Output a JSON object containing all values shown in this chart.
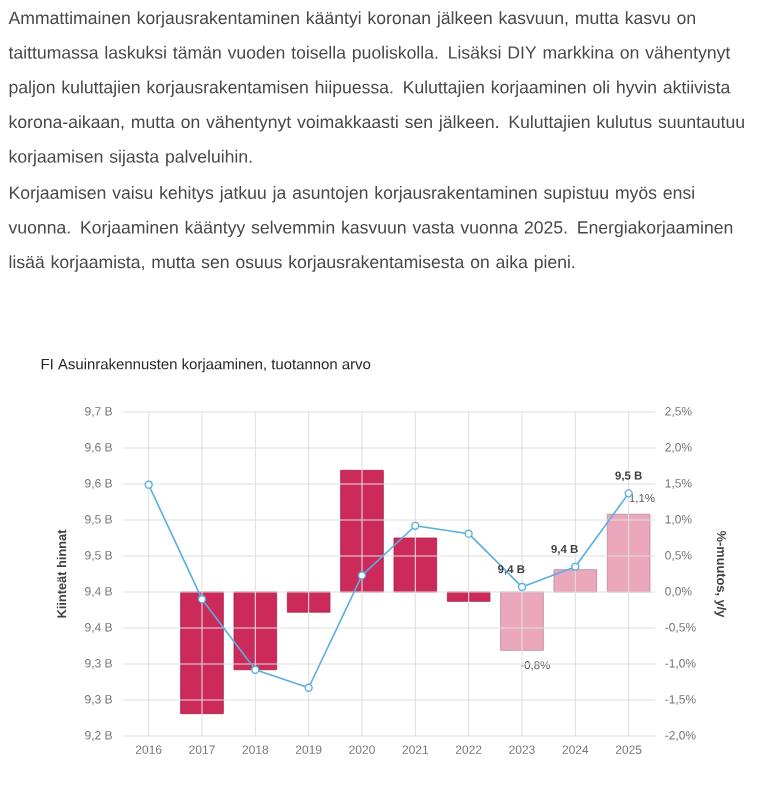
{
  "chart_data": {
    "type": "bar",
    "title": "FI Asuinrakennusten korjaaminen, tuotannon arvo",
    "annotations": [
      "Ammattimainen korjausrakentaminen kääntyi koronan jälkeen kasvuun, mutta kasvu on taittumassa laskuksi tämän vuoden toisella puoliskolla. Lisäksi DIY markkina on vähentynyt paljon kuluttajien korjausrakentamisen hiipuessa. Kuluttajien korjaaminen oli hyvin aktiivista korona-aikaan, mutta on vähentynyt voimakkaasti sen jälkeen. Kuluttajien kulutus suuntautuu korjaamisen sijasta palveluihin.",
      "Korjaamisen vaisu kehitys jatkuu ja asuntojen korjausrakentaminen supistuu myös ensi vuonna. Korjaaminen kääntyy selvemmin kasvuun vasta vuonna 2025. Energiakorjaaminen lisää korjaamista, mutta sen osuus korjausrakentamisesta on aika pieni."
    ],
    "categories": [
      "2016",
      "2017",
      "2018",
      "2019",
      "2020",
      "2021",
      "2022",
      "2023",
      "2024",
      "2025"
    ],
    "series": [
      {
        "axis": "y2",
        "values": [
          null,
          -1.69,
          -1.08,
          -0.28,
          1.69,
          0.75,
          -0.13,
          -0.81,
          0.31,
          1.08
        ],
        "colors": [
          "#cc2a5a",
          "#cc2a5a",
          "#cc2a5a",
          "#cc2a5a",
          "#cc2a5a",
          "#cc2a5a",
          "#cc2a5a",
          "#eba8bd",
          "#eba8bd",
          "#eba8bd"
        ],
        "value_labels": [
          null,
          null,
          null,
          null,
          null,
          null,
          null,
          "-0,8%",
          null,
          "1,1%"
        ]
      },
      {
        "type": "line",
        "color": "#5aaee0",
        "marker": "circle",
        "values": [
          9.549,
          9.39,
          9.292,
          9.267,
          9.423,
          9.492,
          9.481,
          9.407,
          9.435,
          9.537
        ],
        "value_labels": [
          null,
          null,
          null,
          null,
          null,
          null,
          null,
          "9,4 B",
          "9,4 B",
          "9,5 B"
        ]
      }
    ],
    "ylabel": "Kiinteät hinnat",
    "y2label": "%-muutos, y/y",
    "ylim": [
      9.2,
      9.65
    ],
    "yticks": [
      {
        "value": 9.2,
        "label": "9,2 B"
      },
      {
        "value": 9.25,
        "label": "9,3 B"
      },
      {
        "value": 9.3,
        "label": "9,3 B"
      },
      {
        "value": 9.35,
        "label": "9,4 B"
      },
      {
        "value": 9.4,
        "label": "9,4 B"
      },
      {
        "value": 9.45,
        "label": "9,5 B"
      },
      {
        "value": 9.5,
        "label": "9,5 B"
      },
      {
        "value": 9.55,
        "label": "9,6 B"
      },
      {
        "value": 9.6,
        "label": "9,6 B"
      },
      {
        "value": 9.65,
        "label": "9,7 B"
      }
    ],
    "y2lim": [
      -2.0,
      2.5
    ],
    "y2ticks": [
      {
        "value": -2.0,
        "label": "-2,0%"
      },
      {
        "value": -1.5,
        "label": "-1,5%"
      },
      {
        "value": -1.0,
        "label": "-1,0%"
      },
      {
        "value": -0.5,
        "label": "-0,5%"
      },
      {
        "value": 0.0,
        "label": "0,0%"
      },
      {
        "value": 0.5,
        "label": "0,5%"
      },
      {
        "value": 1.0,
        "label": "1,0%"
      },
      {
        "value": 1.5,
        "label": "1,5%"
      },
      {
        "value": 2.0,
        "label": "2,0%"
      },
      {
        "value": 2.5,
        "label": "2,5%"
      }
    ],
    "grid": true
  }
}
